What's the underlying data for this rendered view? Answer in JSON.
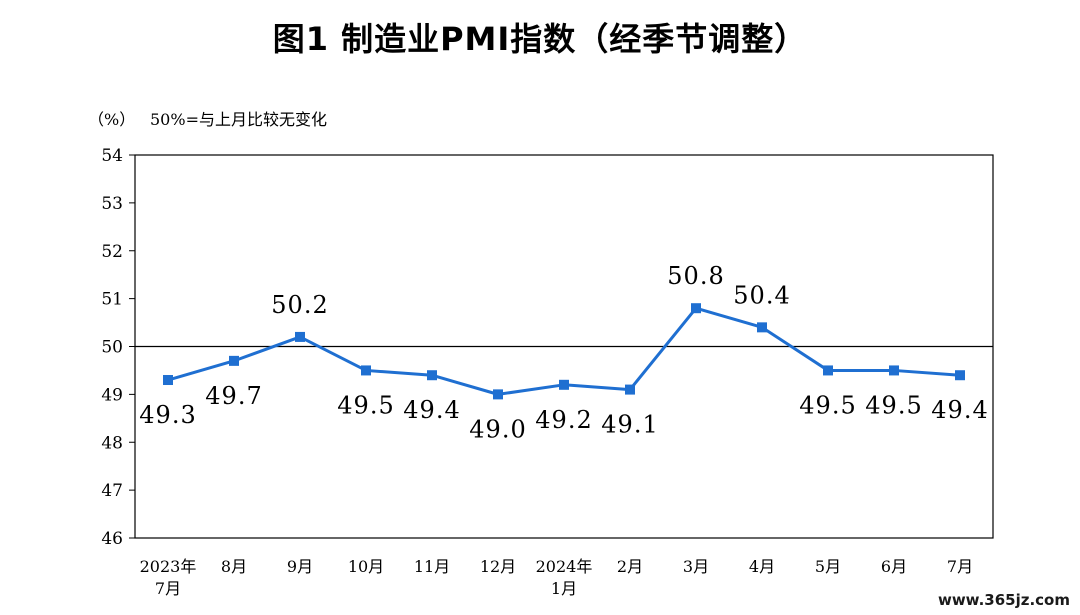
{
  "watermark": "www.365jz.com",
  "chart_data": {
    "type": "line",
    "title": "图1  制造业PMI指数（经季节调整）",
    "unit_label": "（%）",
    "reference_note": "50%=与上月比较无变化",
    "reference_value": 50,
    "ylim": [
      46,
      54
    ],
    "yticks": [
      46,
      47,
      48,
      49,
      50,
      51,
      52,
      53,
      54
    ],
    "categories": [
      [
        "2023年",
        "7月"
      ],
      [
        "8月"
      ],
      [
        "9月"
      ],
      [
        "10月"
      ],
      [
        "11月"
      ],
      [
        "12月"
      ],
      [
        "2024年",
        "1月"
      ],
      [
        "2月"
      ],
      [
        "3月"
      ],
      [
        "4月"
      ],
      [
        "5月"
      ],
      [
        "6月"
      ],
      [
        "7月"
      ]
    ],
    "values": [
      49.3,
      49.7,
      50.2,
      49.5,
      49.4,
      49.0,
      49.2,
      49.1,
      50.8,
      50.4,
      49.5,
      49.5,
      49.4
    ],
    "value_labels": [
      "49.3",
      "49.7",
      "50.2",
      "49.5",
      "49.4",
      "49.0",
      "49.2",
      "49.1",
      "50.8",
      "50.4",
      "49.5",
      "49.5",
      "49.4"
    ],
    "label_positions": [
      "below",
      "below",
      "above",
      "below",
      "below",
      "below",
      "below",
      "below",
      "above",
      "above",
      "below",
      "below",
      "below"
    ],
    "line_color": "#1F6FD1",
    "grid": false
  }
}
